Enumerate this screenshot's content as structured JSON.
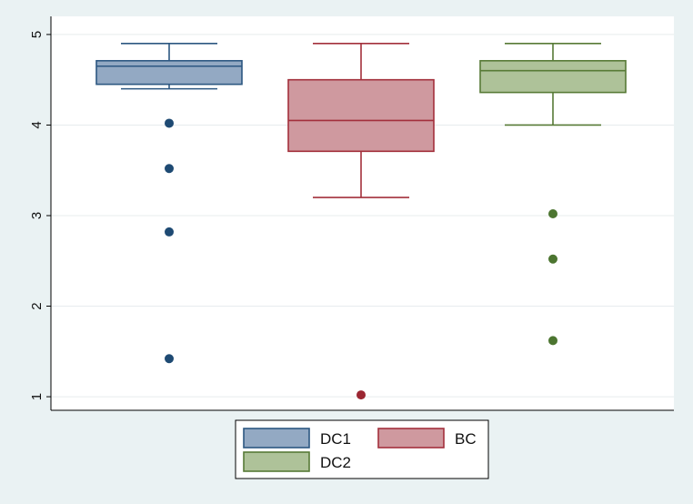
{
  "chart_data": {
    "type": "box",
    "title": "",
    "xlabel": "",
    "ylabel": "",
    "ylim": [
      0.85,
      5.2
    ],
    "yticks": [
      1,
      2,
      3,
      4,
      5
    ],
    "grid": true,
    "legend_position": "bottom",
    "series": [
      {
        "name": "DC1",
        "fill": "#93a9c3",
        "stroke": "#2c5781",
        "outlier_color": "#1e4a73",
        "whisker_low": 4.4,
        "q1": 4.45,
        "median": 4.65,
        "q3": 4.71,
        "whisker_high": 4.9,
        "outliers": [
          4.02,
          3.52,
          2.82,
          1.42
        ]
      },
      {
        "name": "BC",
        "fill": "#cf999f",
        "stroke": "#a3303c",
        "outlier_color": "#9b2632",
        "whisker_low": 3.2,
        "q1": 3.71,
        "median": 4.05,
        "q3": 4.5,
        "whisker_high": 4.9,
        "outliers": [
          1.02
        ]
      },
      {
        "name": "DC2",
        "fill": "#aec299",
        "stroke": "#577a36",
        "outlier_color": "#4c7530",
        "whisker_low": 4.0,
        "q1": 4.36,
        "median": 4.6,
        "q3": 4.71,
        "whisker_high": 4.9,
        "outliers": [
          3.02,
          2.52,
          1.62
        ]
      }
    ]
  }
}
